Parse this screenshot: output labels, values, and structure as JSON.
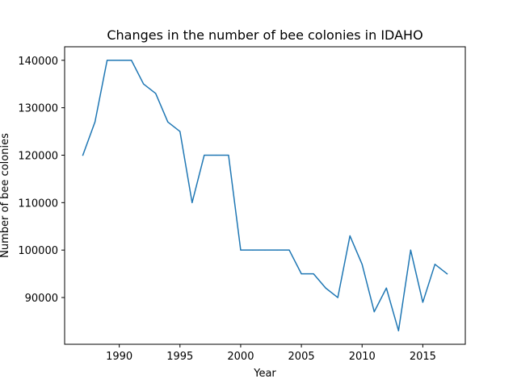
{
  "chart_data": {
    "type": "line",
    "title": "Changes in the number of bee colonies in IDAHO",
    "xlabel": "Year",
    "ylabel": "Number of bee colonies",
    "xlim": [
      1985.5,
      2018.5
    ],
    "ylim": [
      80150,
      142850
    ],
    "xticks": [
      1990,
      1995,
      2000,
      2005,
      2010,
      2015
    ],
    "yticks": [
      90000,
      100000,
      110000,
      120000,
      130000,
      140000
    ],
    "grid": false,
    "series": [
      {
        "color": "#1f77b4",
        "x": [
          1987,
          1988,
          1989,
          1990,
          1991,
          1992,
          1993,
          1994,
          1995,
          1996,
          1997,
          1998,
          1999,
          2000,
          2001,
          2002,
          2003,
          2004,
          2005,
          2006,
          2007,
          2008,
          2009,
          2010,
          2011,
          2012,
          2013,
          2014,
          2015,
          2016,
          2017
        ],
        "y": [
          120000,
          127000,
          140000,
          140000,
          140000,
          135000,
          133000,
          127000,
          125000,
          110000,
          120000,
          120000,
          120000,
          100000,
          100000,
          100000,
          100000,
          100000,
          95000,
          95000,
          92000,
          90000,
          103000,
          97000,
          87000,
          92000,
          83000,
          100000,
          89000,
          97000,
          95000
        ]
      }
    ]
  }
}
